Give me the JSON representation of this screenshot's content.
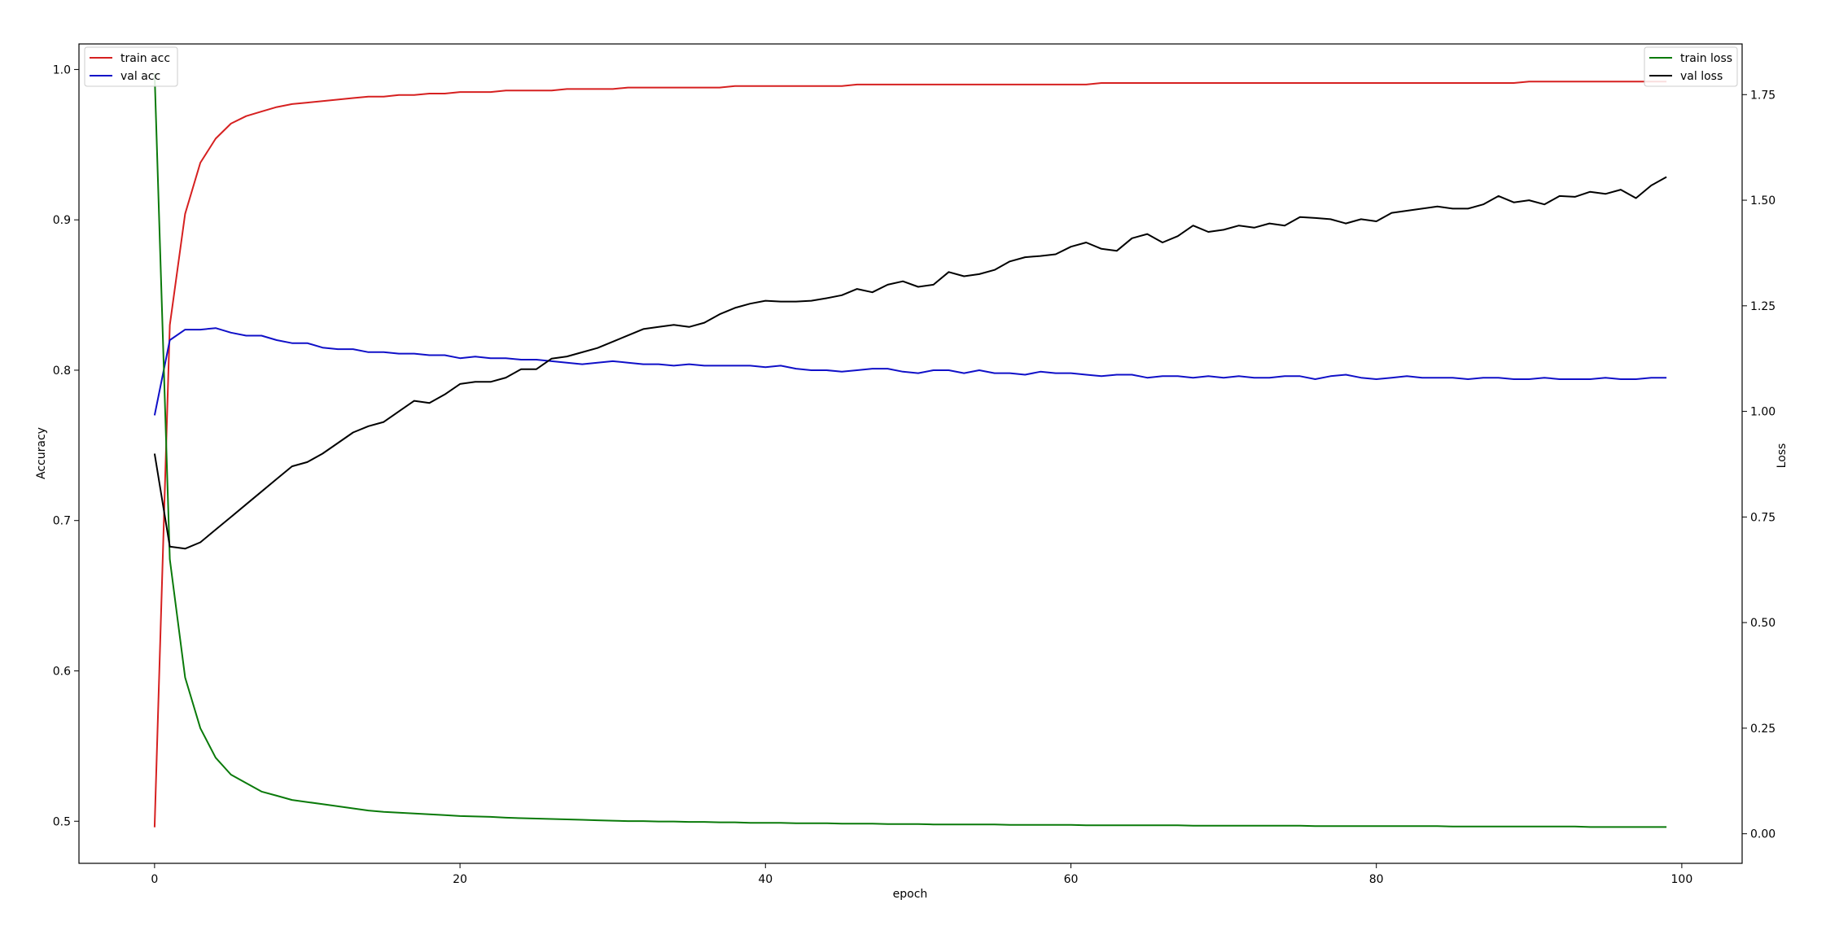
{
  "chart_data": {
    "type": "line",
    "title": "",
    "xlabel": "epoch",
    "ylabel_left": "Accuracy",
    "ylabel_right": "Loss",
    "xlim": [
      -4.95,
      103.95
    ],
    "ylim_left": [
      0.472,
      1.017
    ],
    "ylim_right": [
      -0.07,
      1.87
    ],
    "x_ticks": [
      0,
      20,
      40,
      60,
      80,
      100
    ],
    "y_ticks_left": [
      0.5,
      0.6,
      0.7,
      0.8,
      0.9,
      1.0
    ],
    "y_ticks_right": [
      0.0,
      0.25,
      0.5,
      0.75,
      1.0,
      1.25,
      1.5,
      1.75
    ],
    "x_tick_labels": [
      "0",
      "20",
      "40",
      "60",
      "80",
      "100"
    ],
    "y_tick_labels_left": [
      "0.5",
      "0.6",
      "0.7",
      "0.8",
      "0.9",
      "1.0"
    ],
    "y_tick_labels_right": [
      "0.00",
      "0.25",
      "0.50",
      "0.75",
      "1.00",
      "1.25",
      "1.50",
      "1.75"
    ],
    "grid": false,
    "legend_left_position": "upper-left",
    "legend_right_position": "upper-right",
    "series": [
      {
        "name": "train acc",
        "axis": "left",
        "color": "#d62020",
        "values": [
          0.496,
          0.83,
          0.904,
          0.938,
          0.954,
          0.964,
          0.969,
          0.972,
          0.975,
          0.977,
          0.978,
          0.979,
          0.98,
          0.981,
          0.982,
          0.982,
          0.983,
          0.983,
          0.984,
          0.984,
          0.985,
          0.985,
          0.985,
          0.986,
          0.986,
          0.986,
          0.986,
          0.987,
          0.987,
          0.987,
          0.987,
          0.988,
          0.988,
          0.988,
          0.988,
          0.988,
          0.988,
          0.988,
          0.989,
          0.989,
          0.989,
          0.989,
          0.989,
          0.989,
          0.989,
          0.989,
          0.99,
          0.99,
          0.99,
          0.99,
          0.99,
          0.99,
          0.99,
          0.99,
          0.99,
          0.99,
          0.99,
          0.99,
          0.99,
          0.99,
          0.99,
          0.99,
          0.991,
          0.991,
          0.991,
          0.991,
          0.991,
          0.991,
          0.991,
          0.991,
          0.991,
          0.991,
          0.991,
          0.991,
          0.991,
          0.991,
          0.991,
          0.991,
          0.991,
          0.991,
          0.991,
          0.991,
          0.991,
          0.991,
          0.991,
          0.991,
          0.991,
          0.991,
          0.991,
          0.991,
          0.992,
          0.992,
          0.992,
          0.992,
          0.992,
          0.992,
          0.992,
          0.992,
          0.992,
          0.992
        ]
      },
      {
        "name": "val acc",
        "axis": "left",
        "color": "#1010c8",
        "values": [
          0.77,
          0.82,
          0.827,
          0.827,
          0.828,
          0.825,
          0.823,
          0.823,
          0.82,
          0.818,
          0.818,
          0.815,
          0.814,
          0.814,
          0.812,
          0.812,
          0.811,
          0.811,
          0.81,
          0.81,
          0.808,
          0.809,
          0.808,
          0.808,
          0.807,
          0.807,
          0.806,
          0.805,
          0.804,
          0.805,
          0.806,
          0.805,
          0.804,
          0.804,
          0.803,
          0.804,
          0.803,
          0.803,
          0.803,
          0.803,
          0.802,
          0.803,
          0.801,
          0.8,
          0.8,
          0.799,
          0.8,
          0.801,
          0.801,
          0.799,
          0.798,
          0.8,
          0.8,
          0.798,
          0.8,
          0.798,
          0.798,
          0.797,
          0.799,
          0.798,
          0.798,
          0.797,
          0.796,
          0.797,
          0.797,
          0.795,
          0.796,
          0.796,
          0.795,
          0.796,
          0.795,
          0.796,
          0.795,
          0.795,
          0.796,
          0.796,
          0.794,
          0.796,
          0.797,
          0.795,
          0.794,
          0.795,
          0.796,
          0.795,
          0.795,
          0.795,
          0.794,
          0.795,
          0.795,
          0.794,
          0.794,
          0.795,
          0.794,
          0.794,
          0.794,
          0.795,
          0.794,
          0.794,
          0.795,
          0.795
        ]
      },
      {
        "name": "train loss",
        "axis": "right",
        "color": "#0a7a0a",
        "values": [
          1.8,
          0.65,
          0.37,
          0.25,
          0.18,
          0.14,
          0.12,
          0.1,
          0.09,
          0.08,
          0.075,
          0.07,
          0.065,
          0.06,
          0.055,
          0.052,
          0.05,
          0.048,
          0.046,
          0.044,
          0.042,
          0.041,
          0.04,
          0.038,
          0.037,
          0.036,
          0.035,
          0.034,
          0.033,
          0.032,
          0.031,
          0.03,
          0.03,
          0.029,
          0.029,
          0.028,
          0.028,
          0.027,
          0.027,
          0.026,
          0.026,
          0.026,
          0.025,
          0.025,
          0.025,
          0.024,
          0.024,
          0.024,
          0.023,
          0.023,
          0.023,
          0.022,
          0.022,
          0.022,
          0.022,
          0.022,
          0.021,
          0.021,
          0.021,
          0.021,
          0.021,
          0.02,
          0.02,
          0.02,
          0.02,
          0.02,
          0.02,
          0.02,
          0.019,
          0.019,
          0.019,
          0.019,
          0.019,
          0.019,
          0.019,
          0.019,
          0.018,
          0.018,
          0.018,
          0.018,
          0.018,
          0.018,
          0.018,
          0.018,
          0.018,
          0.017,
          0.017,
          0.017,
          0.017,
          0.017,
          0.017,
          0.017,
          0.017,
          0.017,
          0.016,
          0.016,
          0.016,
          0.016,
          0.016,
          0.016
        ]
      },
      {
        "name": "val loss",
        "axis": "right",
        "color": "#000000",
        "values": [
          0.9,
          0.68,
          0.675,
          0.69,
          0.72,
          0.75,
          0.78,
          0.81,
          0.84,
          0.87,
          0.88,
          0.9,
          0.925,
          0.95,
          0.965,
          0.975,
          1.0,
          1.025,
          1.02,
          1.04,
          1.065,
          1.07,
          1.07,
          1.08,
          1.1,
          1.1,
          1.125,
          1.13,
          1.14,
          1.15,
          1.165,
          1.18,
          1.195,
          1.2,
          1.205,
          1.2,
          1.21,
          1.23,
          1.245,
          1.255,
          1.262,
          1.26,
          1.26,
          1.262,
          1.268,
          1.275,
          1.29,
          1.282,
          1.3,
          1.308,
          1.295,
          1.3,
          1.33,
          1.32,
          1.325,
          1.335,
          1.355,
          1.365,
          1.368,
          1.372,
          1.39,
          1.4,
          1.385,
          1.38,
          1.41,
          1.42,
          1.4,
          1.415,
          1.44,
          1.425,
          1.43,
          1.44,
          1.435,
          1.445,
          1.44,
          1.46,
          1.458,
          1.455,
          1.445,
          1.455,
          1.45,
          1.47,
          1.475,
          1.48,
          1.485,
          1.48,
          1.48,
          1.49,
          1.51,
          1.495,
          1.5,
          1.49,
          1.51,
          1.508,
          1.52,
          1.515,
          1.525,
          1.505,
          1.535,
          1.555
        ]
      }
    ]
  }
}
